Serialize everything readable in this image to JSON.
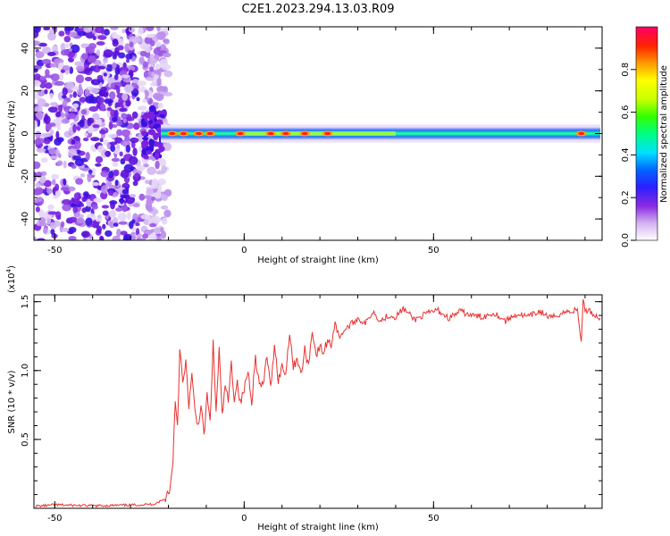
{
  "title": "C2E1.2023.294.13.03.R09",
  "colorbar": {
    "label": "Normalized spectral amplitude",
    "ticks": [
      "0.0",
      "0.2",
      "0.4",
      "0.6",
      "0.8"
    ],
    "range": [
      0,
      1
    ]
  },
  "chart_data": [
    {
      "type": "heatmap",
      "xlabel": "Height of straight line (km)",
      "ylabel": "Frequency (Hz)",
      "xlim": [
        -55.5,
        94.5
      ],
      "ylim": [
        -50,
        50
      ],
      "xticks": [
        "-50",
        "0",
        "50"
      ],
      "yticks": [
        "40",
        "20",
        "0",
        "-20",
        "-40"
      ],
      "noise_region_x": [
        -55.5,
        -22
      ],
      "signal_band_hz": [
        -3,
        3
      ],
      "signal_onset_x": -22,
      "signal_peaks_x": [
        -19,
        -16,
        -12,
        -9,
        -1,
        7,
        11,
        16,
        22,
        89
      ],
      "signal_peak_freq": 0
    },
    {
      "type": "line",
      "xlabel": "Height of straight line (km)",
      "ylabel": "SNR (10 * v/v)",
      "yunit": "(x10",
      "yunit_exp": "4",
      "yunit_close": ")",
      "xlim": [
        -55.5,
        94.5
      ],
      "ylim": [
        0,
        15500
      ],
      "xticks": [
        "-50",
        "0",
        "50"
      ],
      "yticks": [
        "0.5",
        "1.0",
        "1.5"
      ],
      "series": [
        {
          "color": "#e8312f",
          "x": [
            -55,
            -50,
            -40,
            -30,
            -24,
            -21,
            -19.5,
            -18.8,
            -18.2,
            -17.6,
            -17,
            -16.2,
            -15.4,
            -14.6,
            -13.8,
            -13,
            -12.2,
            -11.4,
            -10.6,
            -9.8,
            -9,
            -8.2,
            -7.4,
            -6.6,
            -5.8,
            -5,
            -4.2,
            -3.4,
            -2.6,
            -1.8,
            -1,
            0,
            1,
            2,
            3,
            4,
            5,
            6,
            7,
            8,
            9,
            10,
            11,
            12,
            13,
            14,
            15,
            16,
            17,
            18,
            19,
            20,
            21,
            22,
            23,
            24,
            25,
            26,
            28,
            30,
            32,
            34,
            36,
            38,
            40,
            42,
            45,
            48,
            51,
            54,
            57,
            60,
            63,
            66,
            69,
            72,
            75,
            78,
            81,
            84,
            86,
            88,
            89,
            89.5,
            90,
            91,
            92,
            94
          ],
          "y": [
            150,
            250,
            180,
            230,
            300,
            650,
            1500,
            3500,
            8000,
            6000,
            11600,
            9000,
            10500,
            7500,
            9600,
            7000,
            6000,
            7500,
            5200,
            8200,
            6200,
            11900,
            7000,
            11500,
            6600,
            9000,
            7700,
            10500,
            8000,
            9200,
            7600,
            8600,
            10000,
            7800,
            11000,
            9000,
            8800,
            11200,
            8600,
            12000,
            9300,
            10300,
            9800,
            12900,
            10200,
            11000,
            9600,
            11500,
            10400,
            13000,
            11100,
            11700,
            11300,
            12200,
            11900,
            13600,
            12400,
            12800,
            13300,
            13800,
            13400,
            14300,
            13600,
            14000,
            13900,
            14500,
            13700,
            14100,
            14400,
            13800,
            14300,
            14000,
            13900,
            14200,
            13600,
            14100,
            13900,
            14300,
            13800,
            14200,
            14300,
            14400,
            12000,
            15300,
            14200,
            14500,
            14100,
            13800
          ]
        }
      ]
    }
  ]
}
